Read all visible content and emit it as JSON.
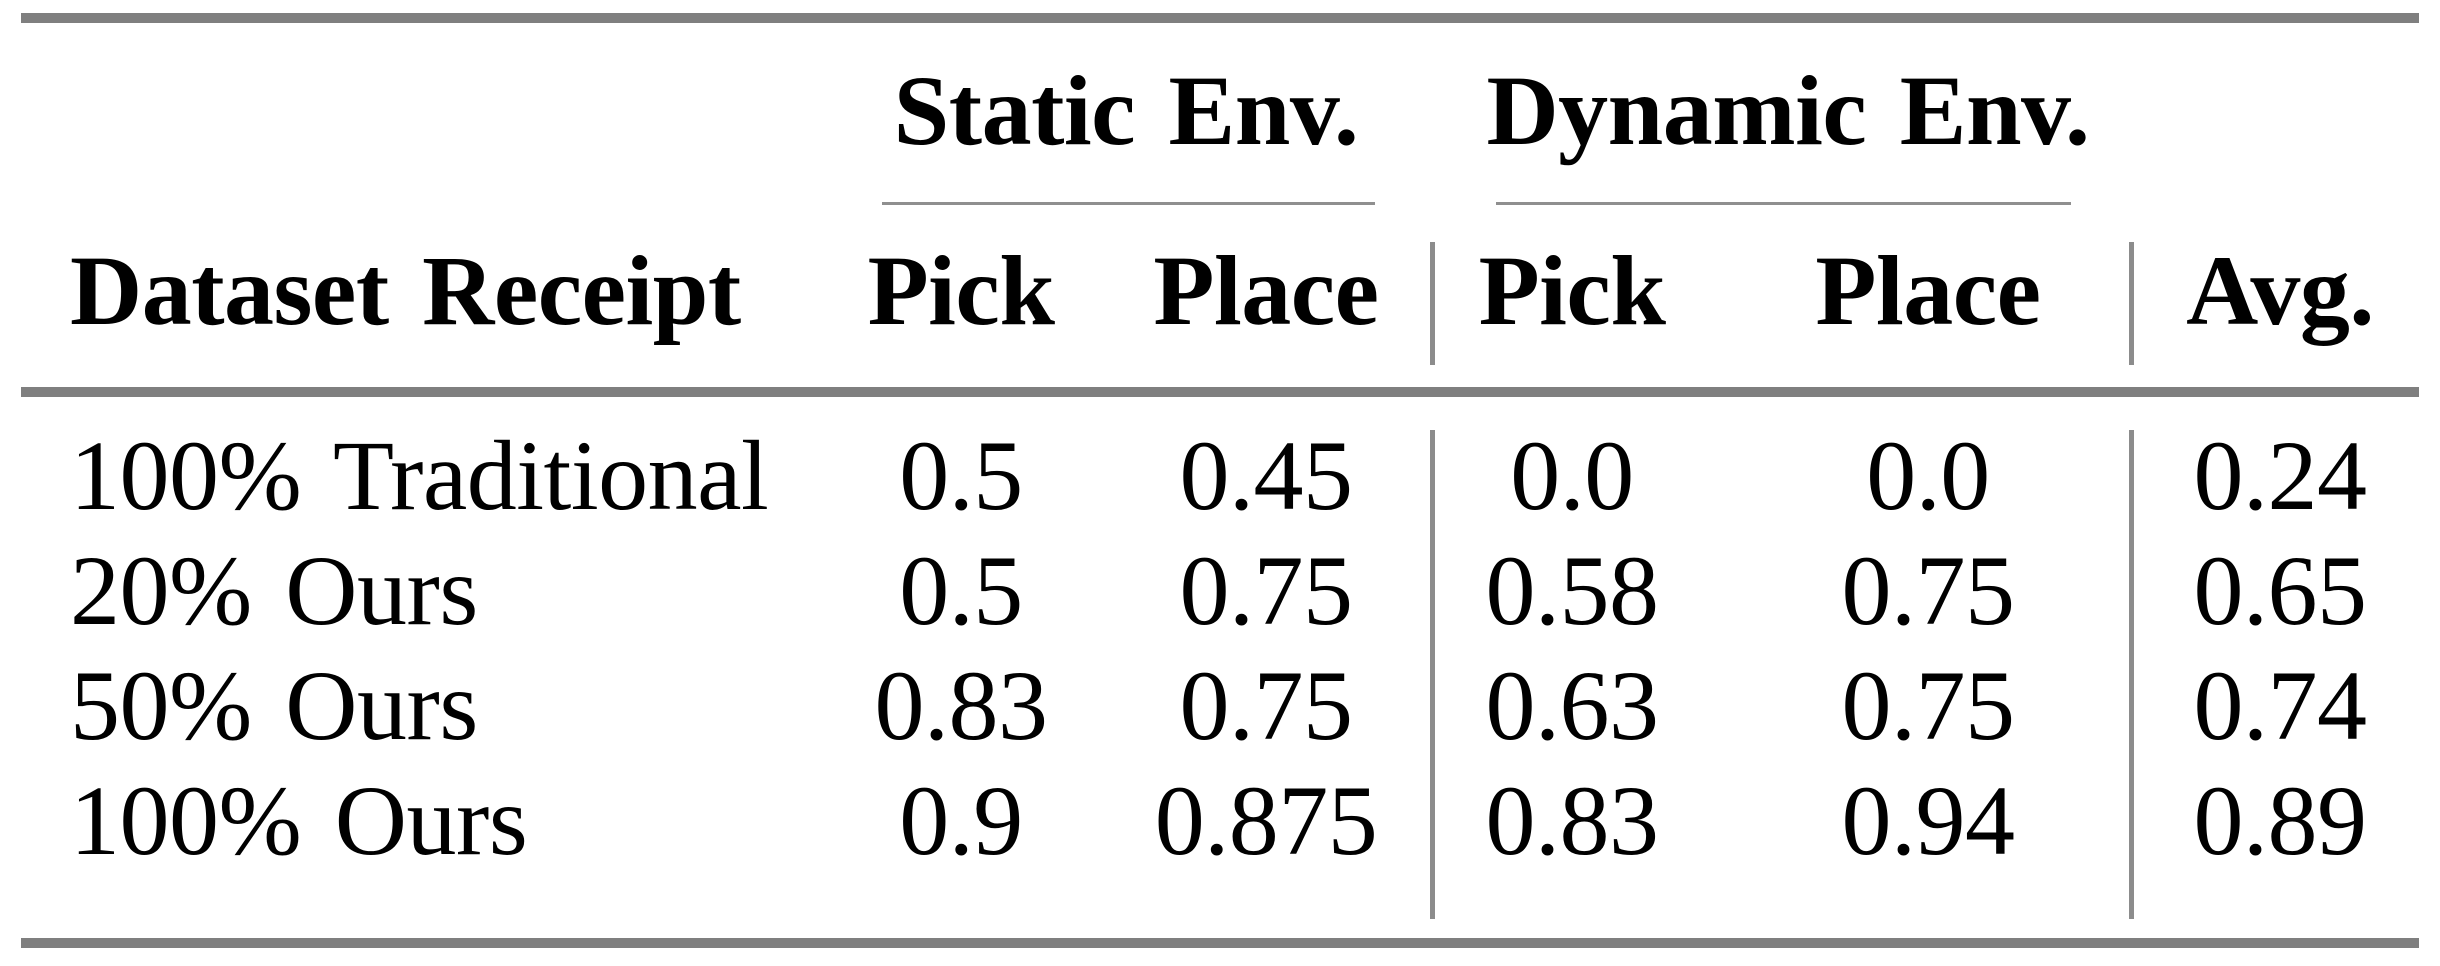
{
  "table": {
    "group_headers": {
      "static": "Static Env.",
      "dynamic": "Dynamic Env."
    },
    "column_headers": {
      "row_label": "Dataset Receipt",
      "static_pick": "Pick",
      "static_place": "Place",
      "dynamic_pick": "Pick",
      "dynamic_place": "Place",
      "avg": "Avg."
    },
    "rows": [
      {
        "label": "100% Traditional",
        "values": [
          "0.5",
          "0.45",
          "0.0",
          "0.0",
          "0.24"
        ]
      },
      {
        "label": "20% Ours",
        "values": [
          "0.5",
          "0.75",
          "0.58",
          "0.75",
          "0.65"
        ]
      },
      {
        "label": "50% Ours",
        "values": [
          "0.83",
          "0.75",
          "0.63",
          "0.75",
          "0.74"
        ]
      },
      {
        "label": "100% Ours",
        "values": [
          "0.9",
          "0.875",
          "0.83",
          "0.94",
          "0.89"
        ]
      }
    ]
  },
  "colors": {
    "rule_thick": "#7f7f7f",
    "rule_thin": "#8f8f8f",
    "text": "#000000",
    "background": "#ffffff"
  }
}
